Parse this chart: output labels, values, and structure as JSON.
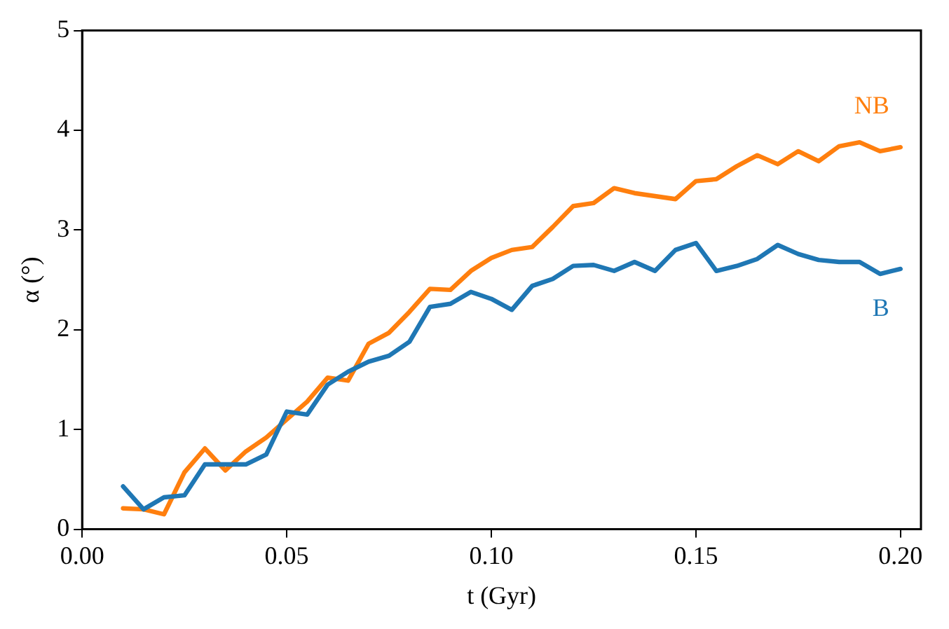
{
  "chart_data": {
    "type": "line",
    "xlabel": "t (Gyr)",
    "ylabel": "α (°)",
    "x": [
      0.01,
      0.015,
      0.02,
      0.025,
      0.03,
      0.035,
      0.04,
      0.045,
      0.05,
      0.055,
      0.06,
      0.065,
      0.07,
      0.075,
      0.08,
      0.085,
      0.09,
      0.095,
      0.1,
      0.105,
      0.11,
      0.115,
      0.12,
      0.125,
      0.13,
      0.135,
      0.14,
      0.145,
      0.15,
      0.155,
      0.16,
      0.165,
      0.17,
      0.175,
      0.18,
      0.185,
      0.19,
      0.195,
      0.2
    ],
    "series": [
      {
        "name": "B",
        "color": "#1f77b4",
        "values": [
          0.43,
          0.2,
          0.32,
          0.34,
          0.65,
          0.65,
          0.65,
          0.75,
          1.18,
          1.15,
          1.45,
          1.58,
          1.68,
          1.74,
          1.88,
          2.23,
          2.26,
          2.38,
          2.31,
          2.2,
          2.44,
          2.51,
          2.64,
          2.65,
          2.59,
          2.68,
          2.59,
          2.8,
          2.87,
          2.59,
          2.64,
          2.71,
          2.85,
          2.76,
          2.7,
          2.68,
          2.68,
          2.56,
          2.61
        ]
      },
      {
        "name": "NB",
        "color": "#ff7f0e",
        "values": [
          0.21,
          0.2,
          0.15,
          0.57,
          0.81,
          0.59,
          0.78,
          0.92,
          1.1,
          1.28,
          1.52,
          1.49,
          1.86,
          1.97,
          2.18,
          2.41,
          2.4,
          2.59,
          2.72,
          2.8,
          2.83,
          3.03,
          3.24,
          3.27,
          3.42,
          3.37,
          3.34,
          3.31,
          3.49,
          3.51,
          3.64,
          3.75,
          3.66,
          3.79,
          3.69,
          3.84,
          3.88,
          3.79,
          3.83
        ]
      }
    ],
    "xlim": [
      0,
      0.205
    ],
    "xticks": [
      {
        "value": 0,
        "label": "0.00"
      },
      {
        "value": 0.05,
        "label": "0.05"
      },
      {
        "value": 0.1,
        "label": "0.10"
      },
      {
        "value": 0.15,
        "label": "0.15"
      },
      {
        "value": 0.2,
        "label": "0.20"
      }
    ],
    "ylim": [
      0,
      5
    ],
    "yticks": [
      0,
      1,
      2,
      3,
      4,
      5
    ],
    "grid": false,
    "legend": false,
    "marker": "none",
    "line_style": "solid"
  }
}
